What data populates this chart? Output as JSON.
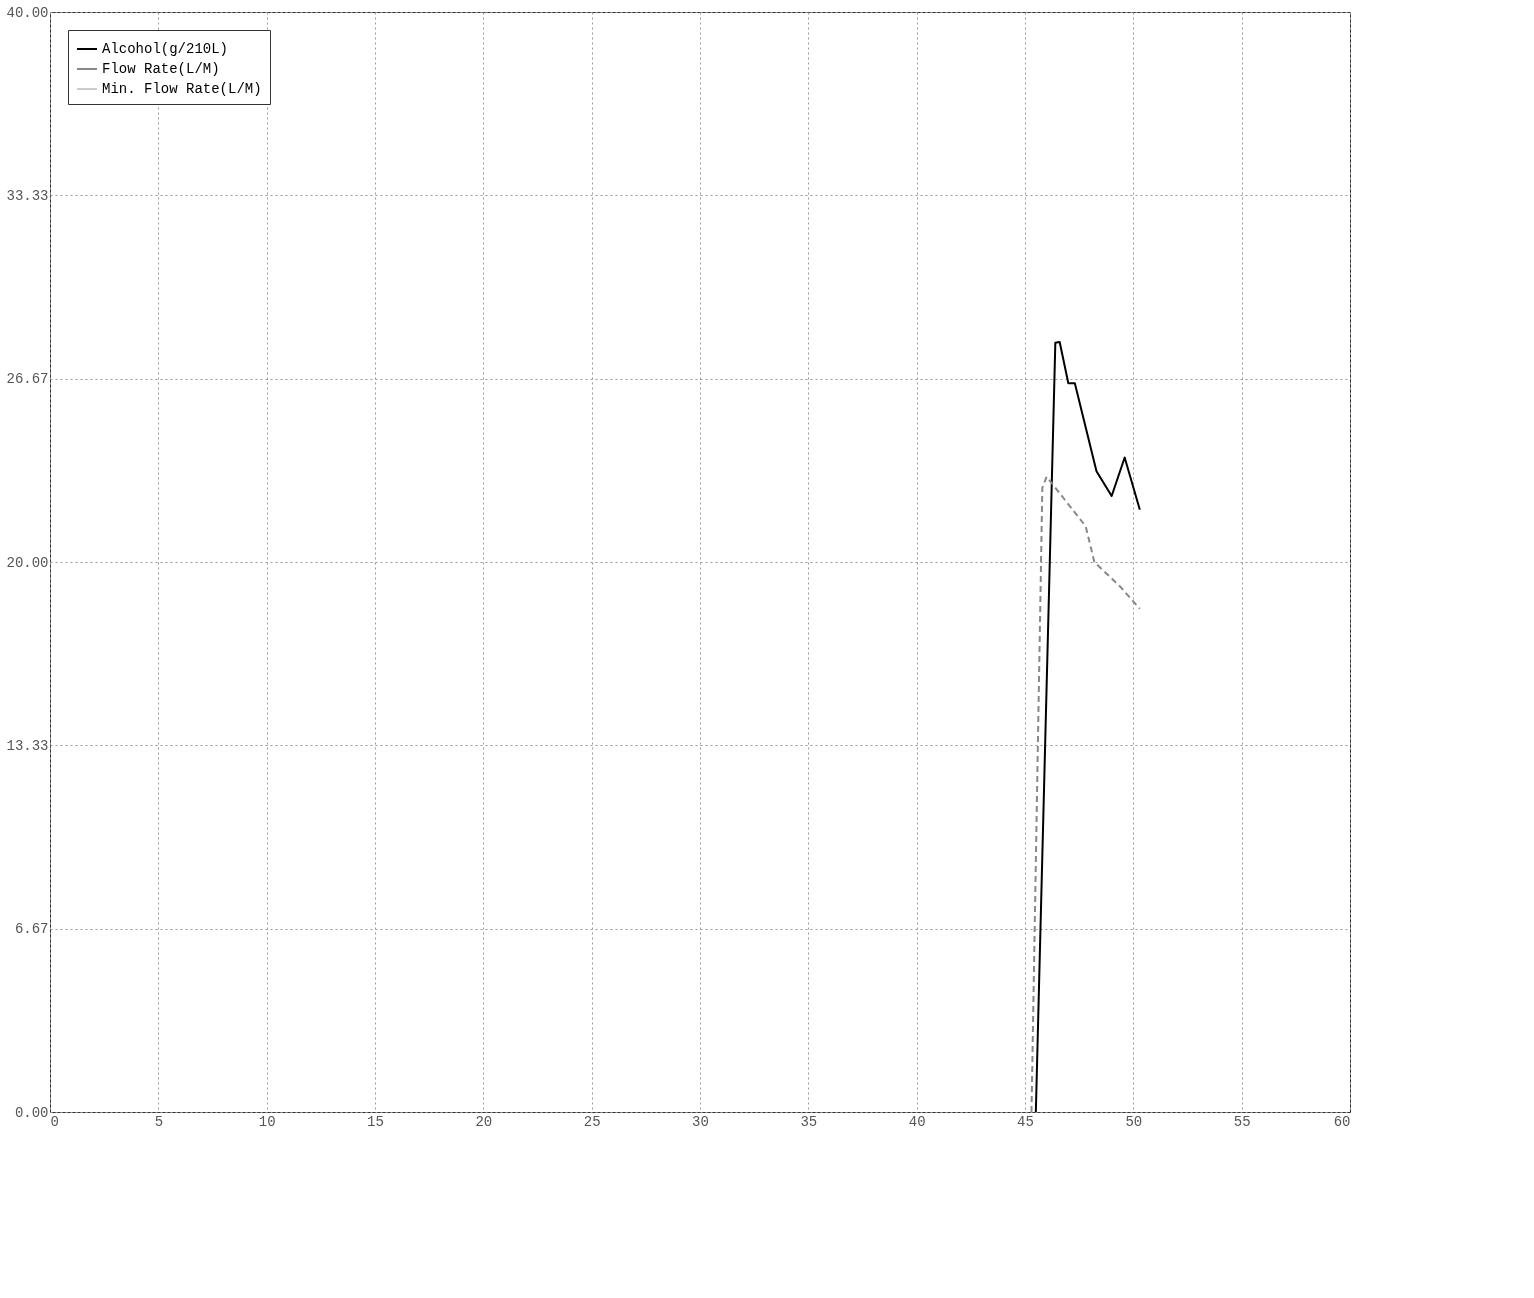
{
  "chart_data": {
    "type": "line",
    "series": [
      {
        "name": "Alcohol(g/210L)",
        "color": "#000000",
        "line_style": "solid",
        "x": [
          45.5,
          46.4,
          46.6,
          47.0,
          47.3,
          48.3,
          49.0,
          49.6,
          50.3
        ],
        "values": [
          0,
          27.97,
          28.0,
          26.5,
          26.5,
          23.3,
          22.4,
          23.8,
          21.9
        ]
      },
      {
        "name": "Flow Rate(L/M)",
        "color": "#888888",
        "line_style": "dashed",
        "x": [
          45.3,
          45.8,
          46.0,
          46.8,
          47.8,
          48.2,
          49.4,
          50.3
        ],
        "values": [
          0,
          22.7,
          23.1,
          22.3,
          21.3,
          20.0,
          19.1,
          18.3
        ]
      },
      {
        "name": "Min. Flow Rate(L/M)",
        "color": "#cccccc",
        "line_style": "solid"
      }
    ],
    "xlim": [
      0,
      60
    ],
    "xticks": [
      0,
      5,
      10,
      15,
      20,
      25,
      30,
      35,
      40,
      45,
      50,
      55,
      60
    ],
    "ylim": [
      0,
      40
    ],
    "yticks": [
      {
        "value": 0,
        "label": "0.00"
      },
      {
        "value": 6.67,
        "label": "6.67"
      },
      {
        "value": 13.33,
        "label": "13.33"
      },
      {
        "value": 20,
        "label": "20.00"
      },
      {
        "value": 26.67,
        "label": "26.67"
      },
      {
        "value": 33.33,
        "label": "33.33"
      },
      {
        "value": 40,
        "label": "40.00"
      }
    ],
    "grid": true,
    "legend": "top left"
  }
}
